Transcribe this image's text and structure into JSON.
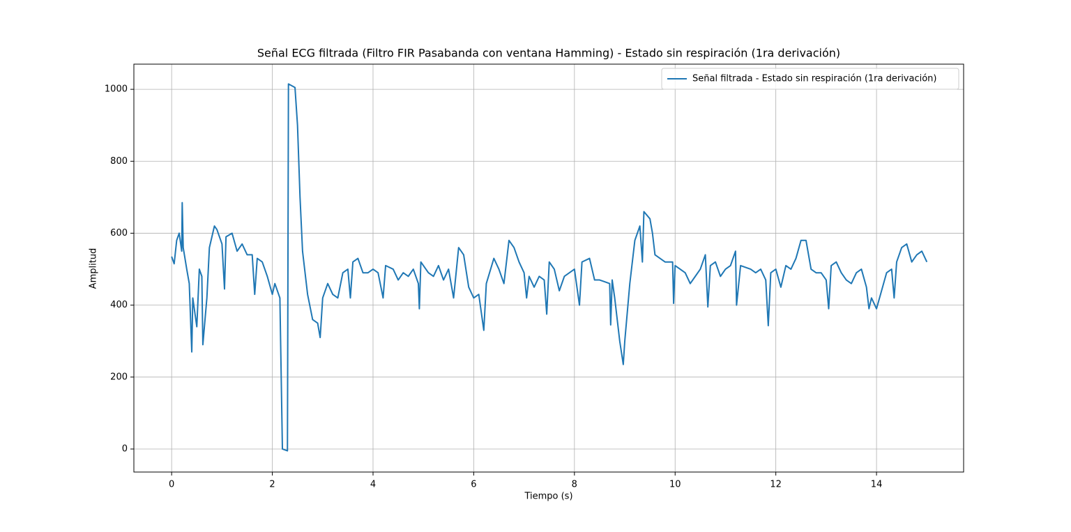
{
  "chart_data": {
    "type": "line",
    "title": "Señal ECG filtrada (Filtro FIR Pasabanda con ventana Hamming) - Estado sin respiración (1ra derivación)",
    "xlabel": "Tiempo (s)",
    "ylabel": "Amplitud",
    "x": [
      0,
      0.05,
      0.1,
      0.15,
      0.2,
      0.21,
      0.23,
      0.3,
      0.35,
      0.4,
      0.42,
      0.5,
      0.55,
      0.6,
      0.62,
      0.7,
      0.75,
      0.85,
      0.9,
      1.0,
      1.05,
      1.08,
      1.2,
      1.3,
      1.4,
      1.5,
      1.6,
      1.65,
      1.7,
      1.8,
      1.9,
      2.0,
      2.05,
      2.15,
      2.2,
      2.3,
      2.32,
      2.45,
      2.5,
      2.55,
      2.6,
      2.7,
      2.8,
      2.9,
      2.95,
      3.0,
      3.1,
      3.2,
      3.3,
      3.4,
      3.5,
      3.55,
      3.6,
      3.7,
      3.8,
      3.9,
      4.0,
      4.1,
      4.2,
      4.25,
      4.4,
      4.5,
      4.6,
      4.7,
      4.8,
      4.9,
      4.92,
      4.95,
      5.1,
      5.2,
      5.3,
      5.4,
      5.5,
      5.6,
      5.7,
      5.8,
      5.9,
      6.0,
      6.1,
      6.2,
      6.25,
      6.4,
      6.5,
      6.6,
      6.7,
      6.8,
      6.9,
      7.0,
      7.05,
      7.1,
      7.2,
      7.3,
      7.4,
      7.45,
      7.5,
      7.6,
      7.7,
      7.8,
      7.9,
      8.0,
      8.1,
      8.15,
      8.3,
      8.4,
      8.5,
      8.6,
      8.7,
      8.72,
      8.75,
      8.8,
      8.9,
      8.97,
      9.0,
      9.1,
      9.2,
      9.3,
      9.35,
      9.38,
      9.5,
      9.55,
      9.6,
      9.7,
      9.8,
      9.95,
      9.97,
      10.0,
      10.2,
      10.3,
      10.4,
      10.5,
      10.6,
      10.65,
      10.7,
      10.8,
      10.9,
      11.0,
      11.1,
      11.2,
      11.22,
      11.3,
      11.5,
      11.6,
      11.7,
      11.8,
      11.85,
      11.9,
      12.0,
      12.1,
      12.2,
      12.3,
      12.4,
      12.5,
      12.6,
      12.7,
      12.8,
      12.9,
      13.0,
      13.05,
      13.1,
      13.2,
      13.3,
      13.4,
      13.5,
      13.6,
      13.7,
      13.8,
      13.85,
      13.9,
      14.0,
      14.1,
      14.2,
      14.3,
      14.35,
      14.4,
      14.5,
      14.6,
      14.7,
      14.8,
      14.9,
      15.0
    ],
    "series": [
      {
        "name": "Señal filtrada - Estado sin respiración (1ra derivación)",
        "color": "#1f77b4",
        "values": [
          535,
          515,
          580,
          600,
          550,
          685,
          560,
          500,
          460,
          270,
          420,
          340,
          500,
          480,
          290,
          420,
          560,
          620,
          610,
          570,
          445,
          590,
          600,
          550,
          570,
          540,
          540,
          430,
          530,
          520,
          480,
          430,
          460,
          420,
          0,
          -5,
          1015,
          1005,
          900,
          700,
          550,
          430,
          360,
          350,
          310,
          420,
          460,
          430,
          420,
          490,
          500,
          420,
          520,
          530,
          490,
          490,
          500,
          490,
          420,
          510,
          500,
          470,
          490,
          480,
          500,
          460,
          390,
          520,
          490,
          480,
          510,
          470,
          500,
          420,
          560,
          540,
          450,
          420,
          430,
          330,
          460,
          530,
          500,
          460,
          580,
          560,
          520,
          490,
          420,
          480,
          450,
          480,
          470,
          375,
          520,
          500,
          440,
          480,
          490,
          500,
          400,
          520,
          530,
          470,
          470,
          465,
          460,
          345,
          470,
          420,
          300,
          235,
          300,
          460,
          580,
          620,
          520,
          660,
          640,
          600,
          540,
          530,
          520,
          520,
          405,
          510,
          490,
          460,
          480,
          500,
          540,
          395,
          510,
          520,
          480,
          500,
          510,
          550,
          400,
          510,
          500,
          490,
          500,
          470,
          343,
          490,
          500,
          450,
          510,
          500,
          530,
          580,
          580,
          500,
          490,
          490,
          470,
          390,
          510,
          520,
          490,
          470,
          460,
          490,
          500,
          450,
          390,
          420,
          390,
          440,
          490,
          500,
          420,
          520,
          560,
          570,
          520,
          540,
          550,
          520
        ]
      }
    ],
    "xlim": [
      -0.75,
      15.73
    ],
    "ylim": [
      -64,
      1070
    ],
    "xticks": [
      0,
      2,
      4,
      6,
      8,
      10,
      12,
      14
    ],
    "yticks": [
      0,
      200,
      400,
      600,
      800,
      1000
    ],
    "grid": true,
    "legend": "upper right"
  }
}
